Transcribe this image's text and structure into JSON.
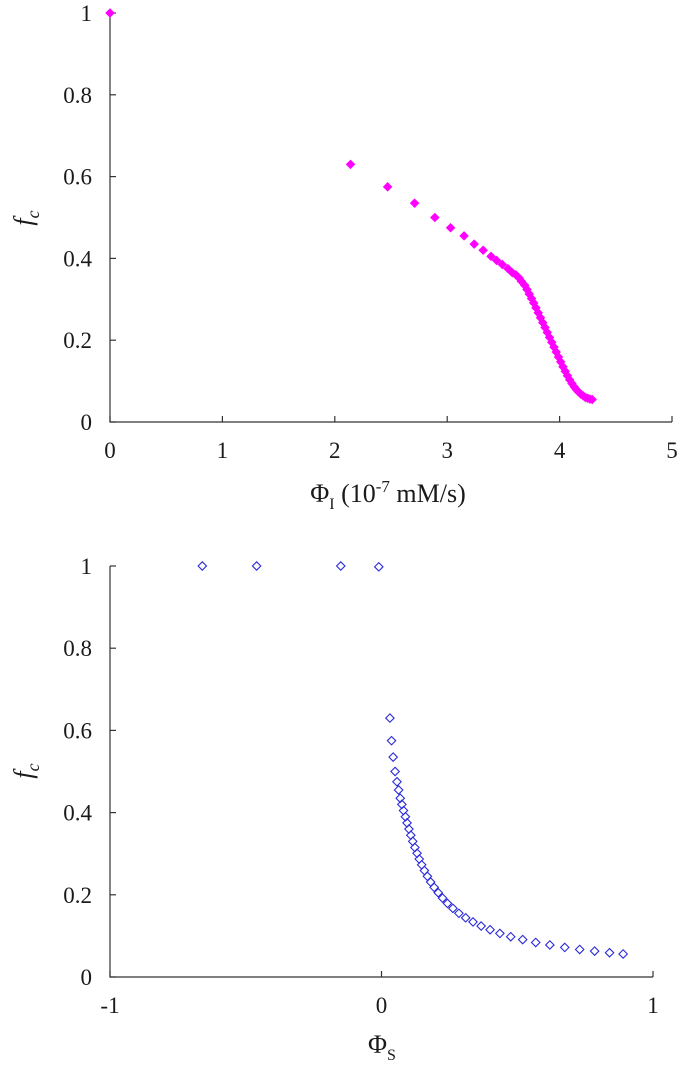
{
  "chart_data": [
    {
      "type": "scatter",
      "title": "",
      "xlabel": "Φ_I (10^-7 mM/s)",
      "ylabel": "f_c",
      "xlim": [
        0,
        5
      ],
      "ylim": [
        0,
        1
      ],
      "xticks": [
        0,
        1,
        2,
        3,
        4,
        5
      ],
      "yticks": [
        0,
        0.2,
        0.4,
        0.6,
        0.8,
        1
      ],
      "xtick_labels": [
        "0",
        "1",
        "2",
        "3",
        "4",
        "5"
      ],
      "ytick_labels": [
        "0",
        "0.2",
        "0.4",
        "0.6",
        "0.8",
        "1"
      ],
      "grid": false,
      "marker": "filled-diamond",
      "color": "#ff00ff",
      "series": [
        {
          "x": [
            0,
            2.14,
            2.47,
            2.71,
            2.89,
            3.03,
            3.15,
            3.24,
            3.32,
            3.39,
            3.44,
            3.49,
            3.54,
            3.58,
            3.61,
            3.64,
            3.66,
            3.69,
            3.71,
            3.73,
            3.75,
            3.77,
            3.79,
            3.81,
            3.83,
            3.85,
            3.87,
            3.89,
            3.91,
            3.93,
            3.95,
            3.97,
            3.99,
            4.01,
            4.03,
            4.05,
            4.07,
            4.09,
            4.11,
            4.13,
            4.15,
            4.17,
            4.19,
            4.21,
            4.23,
            4.25,
            4.27,
            4.29
          ],
          "y": [
            1.0,
            0.63,
            0.575,
            0.535,
            0.5,
            0.475,
            0.455,
            0.435,
            0.42,
            0.405,
            0.395,
            0.385,
            0.375,
            0.365,
            0.36,
            0.352,
            0.344,
            0.334,
            0.324,
            0.313,
            0.302,
            0.291,
            0.279,
            0.267,
            0.255,
            0.243,
            0.231,
            0.219,
            0.207,
            0.195,
            0.183,
            0.171,
            0.159,
            0.147,
            0.135,
            0.124,
            0.113,
            0.103,
            0.094,
            0.086,
            0.079,
            0.073,
            0.068,
            0.064,
            0.06,
            0.058,
            0.056,
            0.055
          ]
        }
      ]
    },
    {
      "type": "scatter",
      "title": "",
      "xlabel": "Φ_S",
      "ylabel": "f_c",
      "xlim": [
        -1,
        1
      ],
      "ylim": [
        0,
        1
      ],
      "xticks": [
        -1,
        0,
        1
      ],
      "yticks": [
        0,
        0.2,
        0.4,
        0.6,
        0.8,
        1
      ],
      "xtick_labels": [
        "-1",
        "0",
        "1"
      ],
      "ytick_labels": [
        "0",
        "0.2",
        "0.4",
        "0.6",
        "0.8",
        "1"
      ],
      "grid": false,
      "marker": "open-diamond",
      "color": "#2b2bd9",
      "series": [
        {
          "x": [
            -0.66,
            -0.46,
            -0.15,
            -0.01,
            0.031,
            0.037,
            0.043,
            0.05,
            0.057,
            0.063,
            0.069,
            0.075,
            0.081,
            0.088,
            0.094,
            0.101,
            0.108,
            0.115,
            0.123,
            0.131,
            0.139,
            0.148,
            0.158,
            0.169,
            0.181,
            0.194,
            0.209,
            0.225,
            0.243,
            0.263,
            0.285,
            0.31,
            0.337,
            0.367,
            0.4,
            0.436,
            0.476,
            0.52,
            0.568,
            0.62,
            0.675,
            0.73,
            0.785,
            0.84,
            0.89
          ],
          "y": [
            1.0,
            1.0,
            1.0,
            0.998,
            0.63,
            0.575,
            0.535,
            0.5,
            0.475,
            0.455,
            0.435,
            0.42,
            0.405,
            0.39,
            0.375,
            0.36,
            0.345,
            0.33,
            0.315,
            0.301,
            0.287,
            0.273,
            0.259,
            0.245,
            0.231,
            0.218,
            0.205,
            0.192,
            0.179,
            0.167,
            0.155,
            0.144,
            0.134,
            0.124,
            0.115,
            0.106,
            0.098,
            0.091,
            0.084,
            0.078,
            0.072,
            0.067,
            0.063,
            0.059,
            0.056
          ]
        }
      ]
    }
  ]
}
